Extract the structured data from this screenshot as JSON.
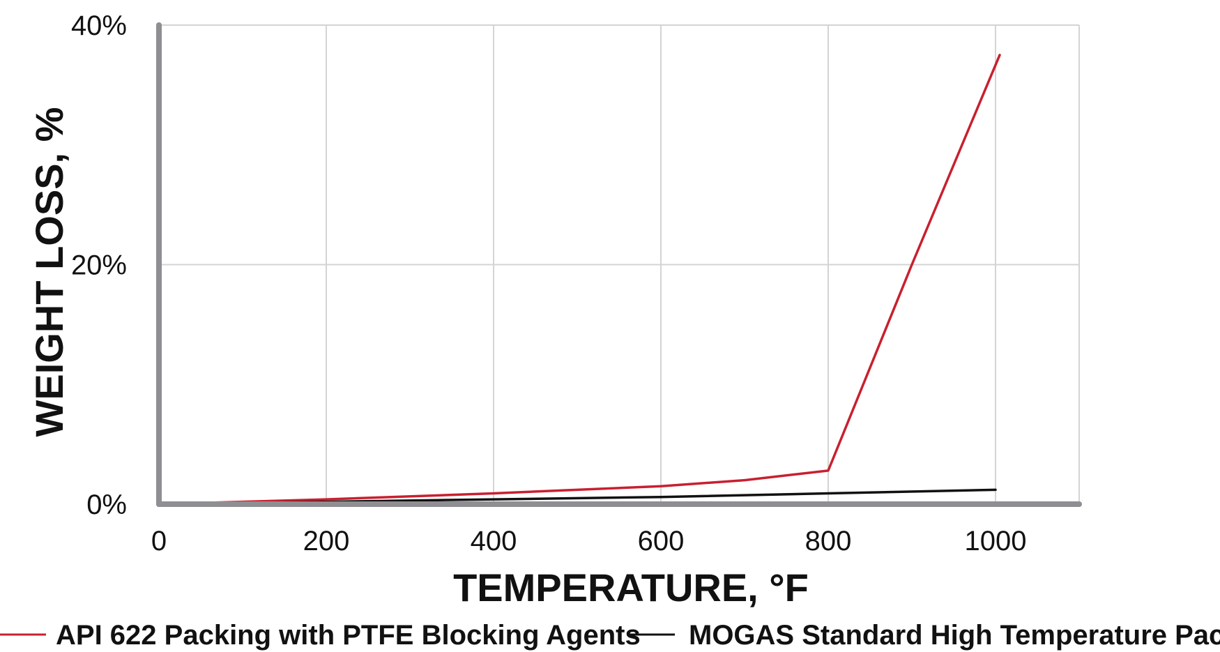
{
  "chart_data": {
    "type": "line",
    "title": "",
    "xlabel": "TEMPERATURE, °F",
    "ylabel": "WEIGHT LOSS, %",
    "xlim": [
      0,
      1100
    ],
    "ylim": [
      0,
      40
    ],
    "x_ticks": [
      {
        "value": 0,
        "label": "0"
      },
      {
        "value": 200,
        "label": "200"
      },
      {
        "value": 400,
        "label": "400"
      },
      {
        "value": 600,
        "label": "600"
      },
      {
        "value": 800,
        "label": "800"
      },
      {
        "value": 1000,
        "label": "1000"
      }
    ],
    "y_ticks": [
      {
        "value": 0,
        "label": "0%"
      },
      {
        "value": 20,
        "label": "20%"
      },
      {
        "value": 40,
        "label": "40%"
      }
    ],
    "grid": true,
    "legend_position": "bottom",
    "series": [
      {
        "name": "API 622 Packing with PTFE  Blocking Agents",
        "color": "#c8202f",
        "points": [
          {
            "x": 0,
            "y": 0
          },
          {
            "x": 200,
            "y": 0.4
          },
          {
            "x": 400,
            "y": 0.9
          },
          {
            "x": 600,
            "y": 1.5
          },
          {
            "x": 700,
            "y": 2.0
          },
          {
            "x": 800,
            "y": 2.8
          },
          {
            "x": 900,
            "y": 20.0
          },
          {
            "x": 1005,
            "y": 37.5
          }
        ]
      },
      {
        "name": "MOGAS Standard High Temperature Packing",
        "color": "#111111",
        "points": [
          {
            "x": 0,
            "y": 0
          },
          {
            "x": 200,
            "y": 0.2
          },
          {
            "x": 400,
            "y": 0.4
          },
          {
            "x": 600,
            "y": 0.6
          },
          {
            "x": 800,
            "y": 0.9
          },
          {
            "x": 1000,
            "y": 1.2
          }
        ]
      }
    ],
    "axis_color": "#8e8e93",
    "grid_color": "#d4d4d4"
  }
}
